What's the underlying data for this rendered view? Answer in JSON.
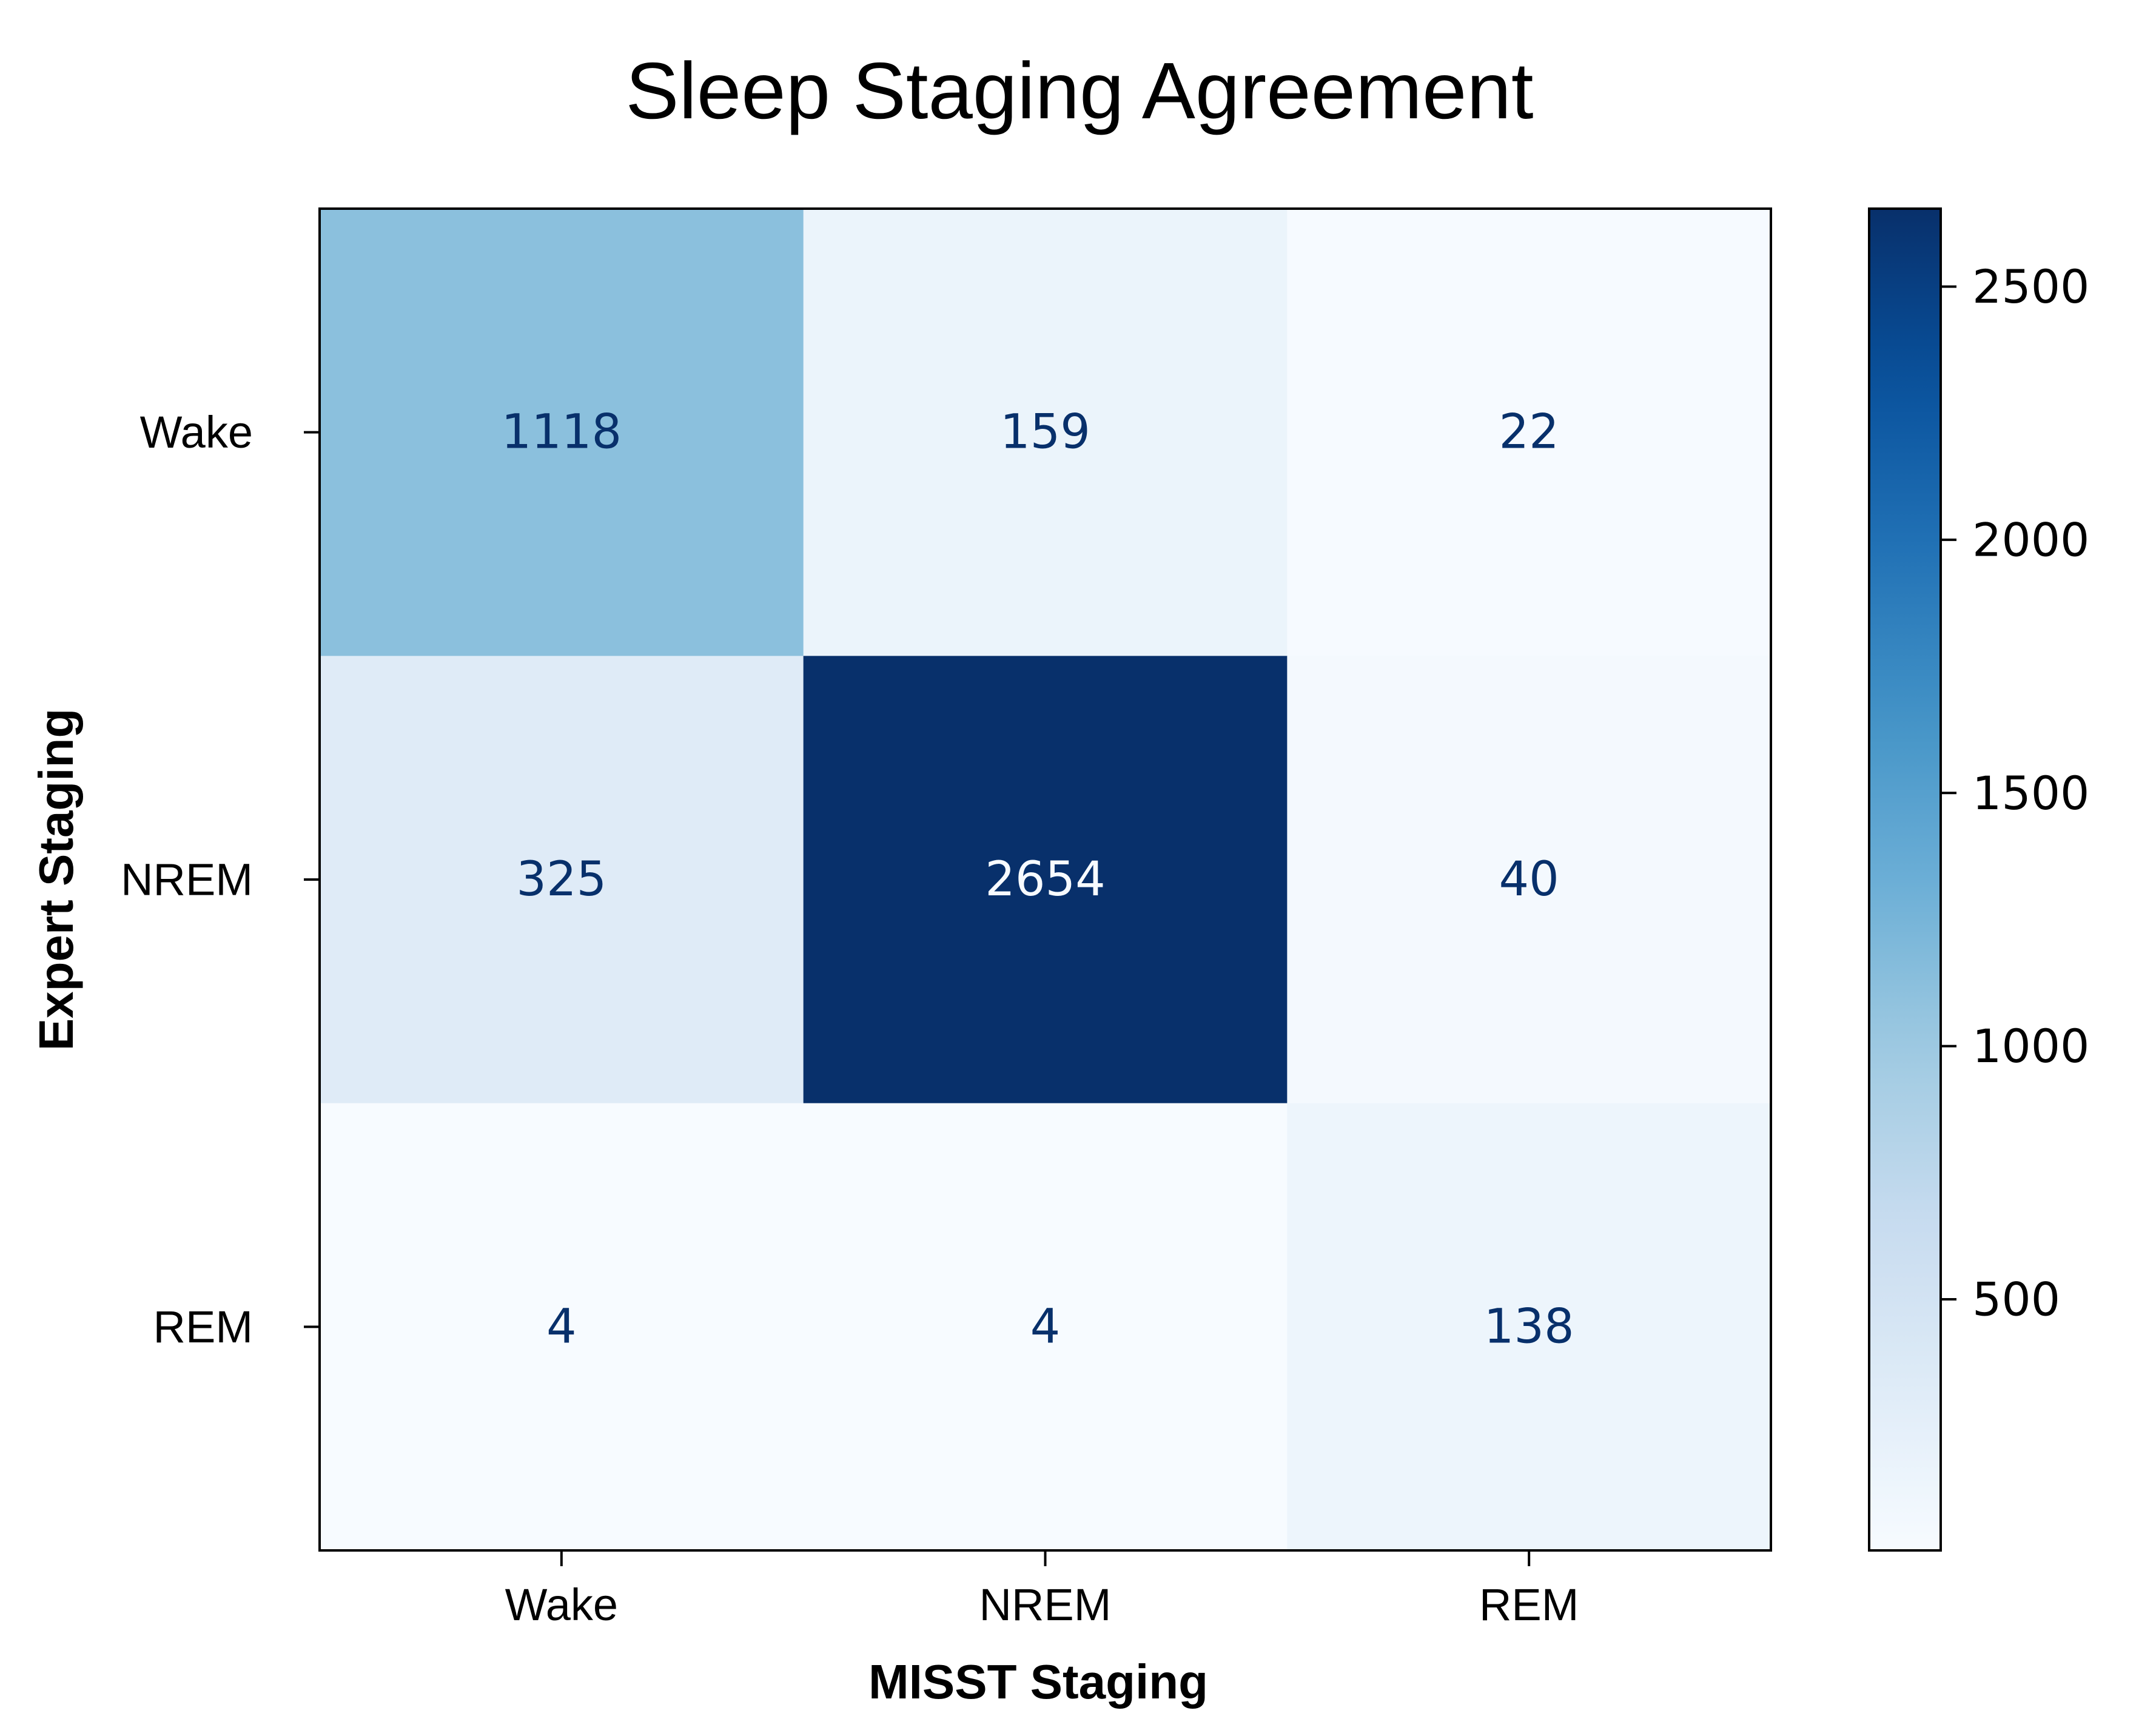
{
  "chart_data": {
    "type": "heatmap",
    "title": "Sleep Staging Agreement",
    "xlabel": "MISST Staging",
    "ylabel": "Expert Staging",
    "x_categories": [
      "Wake",
      "NREM",
      "REM"
    ],
    "y_categories": [
      "Wake",
      "NREM",
      "REM"
    ],
    "values": [
      [
        1118,
        159,
        22
      ],
      [
        325,
        2654,
        40
      ],
      [
        4,
        4,
        138
      ]
    ],
    "colormap": "Blues",
    "colorbar": {
      "range": [
        4,
        2654
      ],
      "ticks": [
        500,
        1000,
        1500,
        2000,
        2500
      ],
      "tick_labels": [
        "500",
        "1000",
        "1500",
        "2000",
        "2500"
      ]
    },
    "grid": false,
    "text_color_light": "#f7fbff",
    "text_color_dark": "#08306b"
  }
}
